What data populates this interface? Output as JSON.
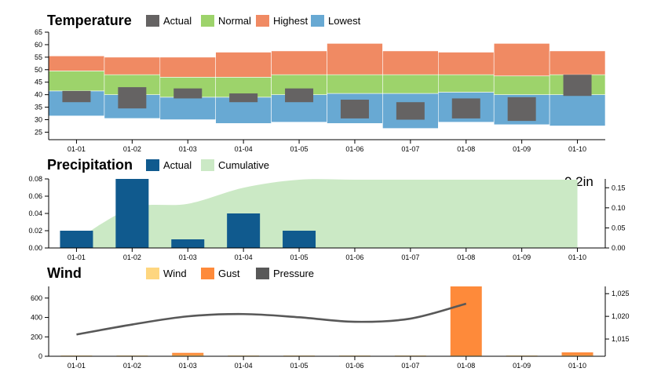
{
  "chart_data": [
    {
      "type": "bar",
      "title": "Temperature",
      "categories": [
        "01-01",
        "01-02",
        "01-03",
        "01-04",
        "01-05",
        "01-06",
        "01-07",
        "01-08",
        "01-09",
        "01-10"
      ],
      "legend": [
        "Actual",
        "Normal",
        "Highest",
        "Lowest"
      ],
      "ylim": [
        22,
        65
      ],
      "yticks": [
        25,
        30,
        35,
        40,
        45,
        50,
        55,
        60,
        65
      ],
      "lowest": [
        [
          31.5,
          41.5
        ],
        [
          30.5,
          40
        ],
        [
          30,
          39
        ],
        [
          28.5,
          39
        ],
        [
          29,
          40
        ],
        [
          28.5,
          40.5
        ],
        [
          26.5,
          40.5
        ],
        [
          29,
          41
        ],
        [
          28,
          40
        ],
        [
          27.5,
          40
        ]
      ],
      "normal": [
        [
          41.5,
          49.5
        ],
        [
          40,
          48
        ],
        [
          39,
          47
        ],
        [
          39,
          47
        ],
        [
          40,
          48
        ],
        [
          40.5,
          48
        ],
        [
          40.5,
          48
        ],
        [
          41,
          48
        ],
        [
          40,
          47.5
        ],
        [
          40,
          48
        ]
      ],
      "highest": [
        [
          49.5,
          55.5
        ],
        [
          48,
          55
        ],
        [
          47,
          55
        ],
        [
          47,
          57
        ],
        [
          48,
          57.5
        ],
        [
          48,
          60.5
        ],
        [
          48,
          57.5
        ],
        [
          48,
          57
        ],
        [
          47.5,
          60.5
        ],
        [
          48,
          57.5
        ]
      ],
      "actual": [
        [
          37,
          41.5
        ],
        [
          34.5,
          43
        ],
        [
          38.5,
          42.5
        ],
        [
          37,
          40.5
        ],
        [
          37,
          42.5
        ],
        [
          30.5,
          38
        ],
        [
          30,
          37
        ],
        [
          30.5,
          38.5
        ],
        [
          29.5,
          39
        ],
        [
          39.5,
          48
        ]
      ],
      "colors": {
        "Actual": "#656363",
        "Normal": "#9dd36b",
        "Highest": "#f08a63",
        "Lowest": "#68a9d3"
      }
    },
    {
      "type": "bar",
      "title": "Precipitation",
      "categories": [
        "01-01",
        "01-02",
        "01-03",
        "01-04",
        "01-05",
        "01-06",
        "01-07",
        "01-08",
        "01-09",
        "01-10"
      ],
      "legend": [
        "Actual",
        "Cumulative"
      ],
      "series": [
        {
          "name": "Actual",
          "values": [
            0.02,
            0.08,
            0.01,
            0.04,
            0.02,
            0,
            0,
            0,
            0,
            0
          ]
        },
        {
          "name": "Cumulative",
          "values": [
            0.02,
            0.1,
            0.11,
            0.15,
            0.17,
            0.17,
            0.17,
            0.17,
            0.17,
            0.17
          ]
        }
      ],
      "ylim": [
        0,
        0.08
      ],
      "yticks": [
        0,
        0.02,
        0.04,
        0.06,
        0.08
      ],
      "ylim_right": [
        0,
        0.172
      ],
      "yticks_right": [
        0,
        0.05,
        0.1,
        0.15
      ],
      "ytick_labels_right": [
        "0.00",
        "0.05",
        "0.10",
        "0.15"
      ],
      "ytick_labels": [
        "0.00",
        "0.02",
        "0.04",
        "0.06",
        "0.08"
      ],
      "annotation": "0.2in",
      "colors": {
        "Actual": "#105a8e",
        "Cumulative": "#cbe9c5"
      }
    },
    {
      "type": "bar",
      "title": "Wind",
      "categories": [
        "01-01",
        "01-02",
        "01-03",
        "01-04",
        "01-05",
        "01-06",
        "01-07",
        "01-08",
        "01-09",
        "01-10"
      ],
      "legend": [
        "Wind",
        "Gust",
        "Pressure"
      ],
      "series": [
        {
          "name": "Wind",
          "values": [
            8,
            8,
            12,
            8,
            8,
            8,
            8,
            8,
            8,
            10
          ]
        },
        {
          "name": "Gust",
          "values": [
            0,
            0,
            35,
            0,
            0,
            0,
            0,
            720,
            0,
            40
          ]
        },
        {
          "name": "Pressure",
          "values": [
            1016,
            1018.2,
            1020,
            1020.5,
            1019.8,
            1018.8,
            1019.5,
            1022.8,
            null,
            null
          ]
        }
      ],
      "ylim": [
        0,
        720
      ],
      "yticks": [
        0,
        200,
        400,
        600
      ],
      "ylim_right": [
        1011.2,
        1026.6
      ],
      "yticks_right": [
        1015,
        1020,
        1025
      ],
      "ytick_labels_right": [
        "1,015",
        "1,020",
        "1,025"
      ],
      "colors": {
        "Wind": "#fed67f",
        "Gust": "#fe8a3a",
        "Pressure": "#585858"
      }
    }
  ]
}
